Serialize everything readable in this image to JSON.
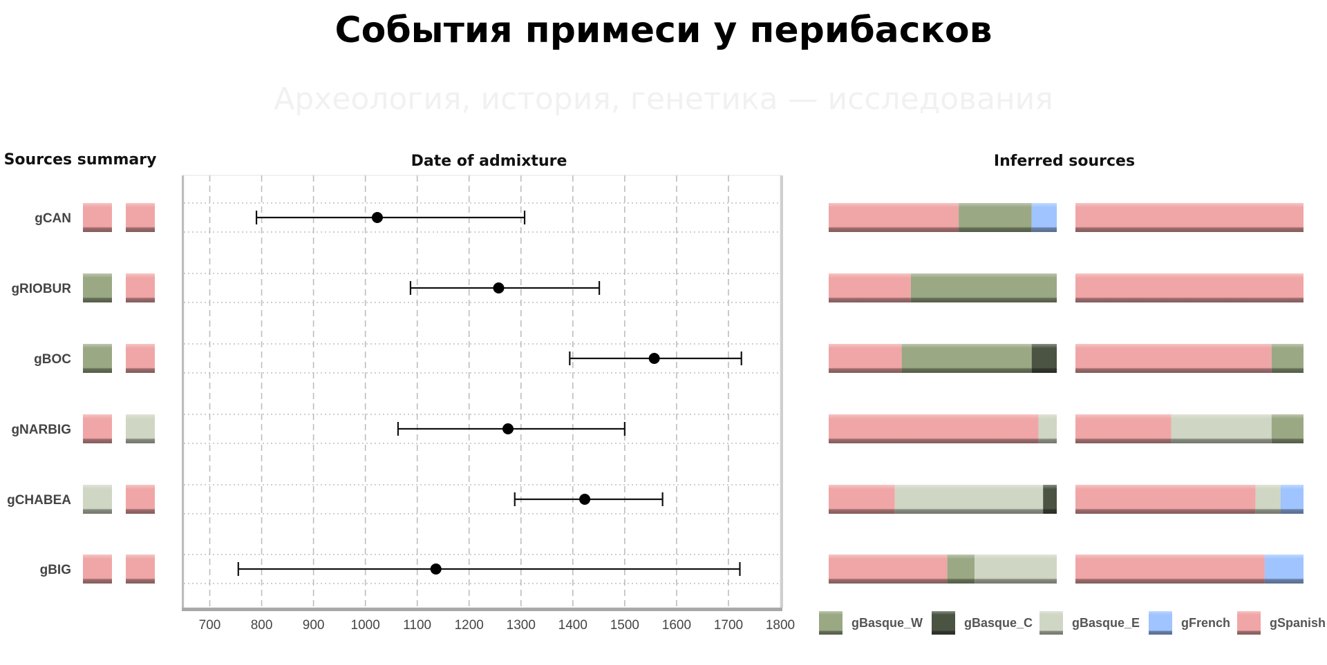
{
  "title": "События примеси у перибасков",
  "watermark": "Археология, история, генетика — исследования",
  "colors": {
    "gBasque_W": "#9aa884",
    "gBasque_C": "#4b5443",
    "gBasque_E": "#cfd6c3",
    "gFrench": "#9fc4ff",
    "gSpanish": "#f0a6a6"
  },
  "chart_data": [
    {
      "type": "table",
      "title": "Sources summary",
      "rows": [
        {
          "label": "gCAN",
          "sources": [
            "gSpanish",
            "gSpanish"
          ]
        },
        {
          "label": "gRIOBUR",
          "sources": [
            "gBasque_W",
            "gSpanish"
          ]
        },
        {
          "label": "gBOC",
          "sources": [
            "gBasque_W",
            "gSpanish"
          ]
        },
        {
          "label": "gNARBIG",
          "sources": [
            "gSpanish",
            "gBasque_E"
          ]
        },
        {
          "label": "gCHABEA",
          "sources": [
            "gBasque_E",
            "gSpanish"
          ]
        },
        {
          "label": "gBIG",
          "sources": [
            "gSpanish",
            "gSpanish"
          ]
        }
      ]
    },
    {
      "type": "scatter",
      "title": "Date of admixture",
      "xlim": [
        650,
        1800
      ],
      "xticks": [
        700,
        800,
        900,
        1000,
        1100,
        1200,
        1300,
        1400,
        1500,
        1600,
        1700,
        1800
      ],
      "grid": true,
      "points": [
        {
          "label": "gCAN",
          "x": 1023,
          "lo": 790,
          "hi": 1307
        },
        {
          "label": "gRIOBUR",
          "x": 1257,
          "lo": 1087,
          "hi": 1451
        },
        {
          "label": "gBOC",
          "x": 1557,
          "lo": 1394,
          "hi": 1725
        },
        {
          "label": "gNARBIG",
          "x": 1275,
          "lo": 1063,
          "hi": 1500
        },
        {
          "label": "gCHABEA",
          "x": 1423,
          "lo": 1288,
          "hi": 1573
        },
        {
          "label": "gBIG",
          "x": 1136,
          "lo": 755,
          "hi": 1722
        }
      ]
    },
    {
      "type": "bar",
      "stacked": true,
      "title": "Inferred sources",
      "series_names": [
        "gBasque_W",
        "gBasque_C",
        "gBasque_E",
        "gFrench",
        "gSpanish"
      ],
      "rows": [
        {
          "label": "gCAN",
          "source1": [
            {
              "name": "gSpanish",
              "value": 0.57
            },
            {
              "name": "gBasque_W",
              "value": 0.32
            },
            {
              "name": "gFrench",
              "value": 0.11
            }
          ],
          "source2": [
            {
              "name": "gSpanish",
              "value": 1.0
            }
          ]
        },
        {
          "label": "gRIOBUR",
          "source1": [
            {
              "name": "gSpanish",
              "value": 0.36
            },
            {
              "name": "gBasque_W",
              "value": 0.64
            }
          ],
          "source2": [
            {
              "name": "gSpanish",
              "value": 1.0
            }
          ]
        },
        {
          "label": "gBOC",
          "source1": [
            {
              "name": "gSpanish",
              "value": 0.32
            },
            {
              "name": "gBasque_W",
              "value": 0.57
            },
            {
              "name": "gBasque_C",
              "value": 0.11
            }
          ],
          "source2": [
            {
              "name": "gSpanish",
              "value": 0.86
            },
            {
              "name": "gBasque_W",
              "value": 0.14
            }
          ]
        },
        {
          "label": "gNARBIG",
          "source1": [
            {
              "name": "gSpanish",
              "value": 0.92
            },
            {
              "name": "gBasque_E",
              "value": 0.08
            }
          ],
          "source2": [
            {
              "name": "gSpanish",
              "value": 0.42
            },
            {
              "name": "gBasque_E",
              "value": 0.44
            },
            {
              "name": "gBasque_W",
              "value": 0.14
            }
          ]
        },
        {
          "label": "gCHABEA",
          "source1": [
            {
              "name": "gSpanish",
              "value": 0.29
            },
            {
              "name": "gBasque_E",
              "value": 0.65
            },
            {
              "name": "gBasque_C",
              "value": 0.06
            }
          ],
          "source2": [
            {
              "name": "gSpanish",
              "value": 0.79
            },
            {
              "name": "gBasque_E",
              "value": 0.11
            },
            {
              "name": "gFrench",
              "value": 0.1
            }
          ]
        },
        {
          "label": "gBIG",
          "source1": [
            {
              "name": "gSpanish",
              "value": 0.52
            },
            {
              "name": "gBasque_W",
              "value": 0.12
            },
            {
              "name": "gBasque_E",
              "value": 0.36
            }
          ],
          "source2": [
            {
              "name": "gSpanish",
              "value": 0.83
            },
            {
              "name": "gFrench",
              "value": 0.17
            }
          ]
        }
      ]
    }
  ]
}
